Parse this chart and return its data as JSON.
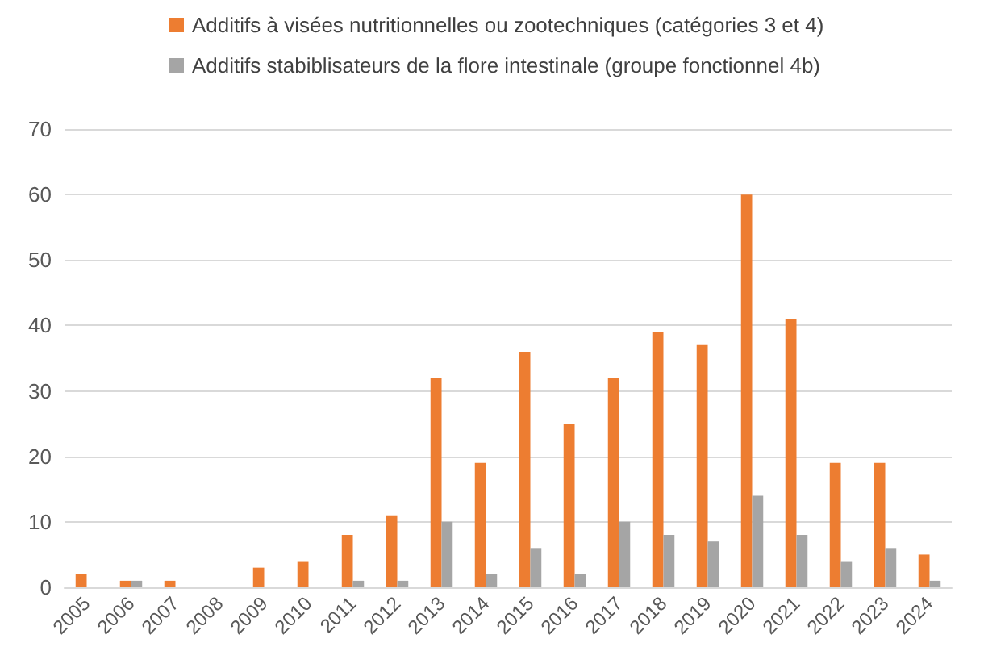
{
  "chart_data": {
    "type": "bar",
    "categories": [
      "2005",
      "2006",
      "2007",
      "2008",
      "2009",
      "2010",
      "2011",
      "2012",
      "2013",
      "2014",
      "2015",
      "2016",
      "2017",
      "2018",
      "2019",
      "2020",
      "2021",
      "2022",
      "2023",
      "2024"
    ],
    "series": [
      {
        "name": "Additifs à visées nutritionnelles ou zootechniques (catégories 3 et 4)",
        "color": "#ed7d31",
        "values": [
          2,
          1,
          1,
          0,
          3,
          4,
          8,
          11,
          32,
          19,
          36,
          25,
          32,
          39,
          37,
          60,
          41,
          19,
          19,
          5
        ]
      },
      {
        "name": "Additifs stabiblisateurs de la flore intestinale (groupe fonctionnel 4b)",
        "color": "#a5a5a5",
        "values": [
          0,
          1,
          0,
          0,
          0,
          0,
          1,
          1,
          10,
          2,
          6,
          2,
          10,
          8,
          7,
          14,
          8,
          4,
          6,
          1
        ]
      }
    ],
    "ylim": [
      0,
      70
    ],
    "yticks": [
      0,
      10,
      20,
      30,
      40,
      50,
      60,
      70
    ],
    "grid": "y",
    "legend": "top"
  }
}
